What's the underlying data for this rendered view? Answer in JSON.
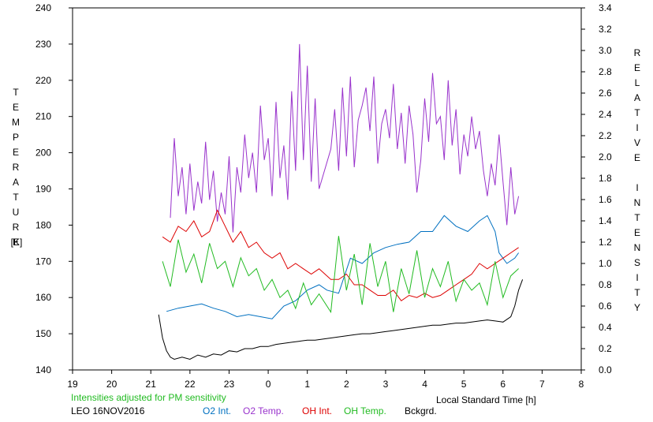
{
  "left_axis_label": "TEMPERATURE",
  "left_axis_unit": "[K]",
  "right_axis_label": "RELATIVE INTENSITY",
  "note": "Intensities adjusted for PM sensitivity",
  "station": "LEO 16NOV2016",
  "colors": {
    "o2_int": "#0070c0",
    "o2_temp": "#9933cc",
    "oh_int": "#dd0000",
    "oh_temp": "#22bb22",
    "bckgrd": "#000000",
    "note": "#22bb22"
  },
  "chart_data": {
    "type": "line",
    "xlabel": "Local Standard Time [h]",
    "x_ticks": [
      "19",
      "20",
      "21",
      "22",
      "23",
      "0",
      "1",
      "2",
      "3",
      "4",
      "5",
      "6",
      "7",
      "8"
    ],
    "xlim": [
      19,
      32
    ],
    "ylabel_left": "TEMPERATURE [K]",
    "ylim_left": [
      140,
      240
    ],
    "y_ticks_left": [
      "140",
      "150",
      "160",
      "170",
      "180",
      "190",
      "200",
      "210",
      "220",
      "230",
      "240"
    ],
    "ylabel_right": "RELATIVE INTENSITY",
    "ylim_right": [
      0.0,
      3.4
    ],
    "y_ticks_right": [
      "0.0",
      "0.2",
      "0.4",
      "0.6",
      "0.8",
      "1.0",
      "1.2",
      "1.4",
      "1.6",
      "1.8",
      "2.0",
      "2.2",
      "2.4",
      "2.6",
      "2.8",
      "3.0",
      "3.2",
      "3.4"
    ],
    "grid": false,
    "legend": "bottom",
    "series": [
      {
        "name": "O2 Int.",
        "axis": "right",
        "x": [
          21.4,
          21.7,
          22.0,
          22.3,
          22.6,
          22.9,
          23.2,
          23.5,
          23.8,
          24.1,
          24.4,
          24.7,
          25.0,
          25.3,
          25.5,
          25.8,
          26.1,
          26.4,
          26.7,
          27.0,
          27.3,
          27.6,
          27.9,
          28.2,
          28.5,
          28.8,
          29.1,
          29.4,
          29.6,
          29.8,
          29.9,
          30.1,
          30.3,
          30.4
        ],
        "y": [
          0.55,
          0.58,
          0.6,
          0.62,
          0.58,
          0.55,
          0.5,
          0.52,
          0.5,
          0.48,
          0.6,
          0.65,
          0.75,
          0.8,
          0.75,
          0.72,
          1.05,
          1.0,
          1.1,
          1.15,
          1.18,
          1.2,
          1.3,
          1.3,
          1.45,
          1.35,
          1.3,
          1.4,
          1.45,
          1.3,
          1.1,
          1.0,
          1.05,
          1.1
        ]
      },
      {
        "name": "O2 Temp.",
        "axis": "left",
        "x": [
          21.5,
          21.6,
          21.7,
          21.8,
          21.9,
          22.0,
          22.1,
          22.2,
          22.3,
          22.4,
          22.5,
          22.6,
          22.7,
          22.8,
          22.9,
          23.0,
          23.1,
          23.2,
          23.3,
          23.4,
          23.5,
          23.6,
          23.7,
          23.8,
          23.9,
          24.0,
          24.1,
          24.2,
          24.3,
          24.4,
          24.5,
          24.6,
          24.7,
          24.8,
          24.9,
          25.0,
          25.1,
          25.2,
          25.3,
          25.6,
          25.7,
          25.8,
          25.9,
          26.0,
          26.1,
          26.2,
          26.3,
          26.4,
          26.5,
          26.6,
          26.7,
          26.8,
          26.9,
          27.0,
          27.1,
          27.2,
          27.3,
          27.4,
          27.5,
          27.6,
          27.7,
          27.8,
          27.9,
          28.0,
          28.1,
          28.2,
          28.3,
          28.4,
          28.5,
          28.6,
          28.7,
          28.8,
          28.9,
          29.0,
          29.1,
          29.2,
          29.3,
          29.4,
          29.5,
          29.6,
          29.7,
          29.8,
          29.9,
          30.0,
          30.1,
          30.2,
          30.3,
          30.4
        ],
        "y": [
          182,
          204,
          188,
          196,
          183,
          197,
          184,
          192,
          186,
          203,
          187,
          195,
          181,
          189,
          183,
          199,
          178,
          196,
          189,
          205,
          193,
          200,
          189,
          213,
          198,
          204,
          188,
          214,
          193,
          202,
          187,
          217,
          195,
          230,
          198,
          224,
          192,
          215,
          190,
          201,
          212,
          195,
          218,
          199,
          221,
          196,
          209,
          213,
          218,
          206,
          221,
          197,
          208,
          212,
          204,
          219,
          201,
          211,
          197,
          213,
          205,
          189,
          198,
          215,
          203,
          222,
          208,
          210,
          198,
          220,
          202,
          212,
          194,
          205,
          199,
          210,
          201,
          206,
          195,
          188,
          197,
          191,
          205,
          192,
          180,
          196,
          183,
          188
        ]
      },
      {
        "name": "OH Int.",
        "axis": "right",
        "x": [
          21.3,
          21.5,
          21.7,
          21.9,
          22.1,
          22.3,
          22.5,
          22.7,
          22.9,
          23.1,
          23.3,
          23.5,
          23.7,
          23.9,
          24.1,
          24.3,
          24.5,
          24.7,
          24.9,
          25.1,
          25.3,
          25.6,
          25.8,
          26.0,
          26.2,
          26.4,
          26.6,
          26.8,
          27.0,
          27.2,
          27.4,
          27.6,
          27.8,
          28.0,
          28.2,
          28.4,
          28.6,
          28.8,
          29.0,
          29.2,
          29.4,
          29.6,
          29.8,
          30.0,
          30.2,
          30.4
        ],
        "y": [
          1.25,
          1.2,
          1.35,
          1.3,
          1.4,
          1.25,
          1.3,
          1.5,
          1.35,
          1.2,
          1.3,
          1.15,
          1.2,
          1.1,
          1.05,
          1.1,
          0.95,
          1.0,
          0.95,
          0.9,
          0.95,
          0.85,
          0.85,
          0.9,
          0.8,
          0.8,
          0.75,
          0.7,
          0.7,
          0.75,
          0.65,
          0.7,
          0.68,
          0.72,
          0.68,
          0.7,
          0.75,
          0.8,
          0.85,
          0.9,
          1.0,
          0.95,
          1.0,
          1.05,
          1.1,
          1.15
        ]
      },
      {
        "name": "OH Temp.",
        "axis": "left",
        "x": [
          21.3,
          21.5,
          21.7,
          21.9,
          22.1,
          22.3,
          22.5,
          22.7,
          22.9,
          23.1,
          23.3,
          23.5,
          23.7,
          23.9,
          24.1,
          24.3,
          24.5,
          24.7,
          24.9,
          25.1,
          25.3,
          25.6,
          25.8,
          26.0,
          26.2,
          26.4,
          26.6,
          26.8,
          27.0,
          27.2,
          27.4,
          27.6,
          27.8,
          28.0,
          28.2,
          28.4,
          28.6,
          28.8,
          29.0,
          29.2,
          29.4,
          29.6,
          29.8,
          30.0,
          30.2,
          30.4
        ],
        "y": [
          170,
          163,
          176,
          167,
          172,
          164,
          175,
          168,
          170,
          163,
          171,
          166,
          168,
          162,
          165,
          160,
          162,
          157,
          164,
          158,
          161,
          156,
          177,
          162,
          172,
          158,
          175,
          163,
          170,
          156,
          168,
          161,
          173,
          160,
          168,
          163,
          170,
          159,
          165,
          162,
          164,
          158,
          170,
          160,
          166,
          168
        ]
      },
      {
        "name": "Bckgrd.",
        "axis": "right",
        "x": [
          21.2,
          21.3,
          21.4,
          21.5,
          21.6,
          21.8,
          22.0,
          22.2,
          22.4,
          22.6,
          22.8,
          23.0,
          23.2,
          23.4,
          23.6,
          23.8,
          24.0,
          24.2,
          24.4,
          24.6,
          24.8,
          25.0,
          25.2,
          25.4,
          25.6,
          25.8,
          26.0,
          26.2,
          26.4,
          26.6,
          26.8,
          27.0,
          27.2,
          27.4,
          27.6,
          27.8,
          28.0,
          28.2,
          28.4,
          28.6,
          28.8,
          29.0,
          29.2,
          29.4,
          29.6,
          29.8,
          30.0,
          30.2,
          30.3,
          30.4,
          30.5
        ],
        "y": [
          0.52,
          0.3,
          0.18,
          0.12,
          0.1,
          0.12,
          0.1,
          0.14,
          0.12,
          0.15,
          0.14,
          0.18,
          0.17,
          0.2,
          0.2,
          0.22,
          0.22,
          0.24,
          0.25,
          0.26,
          0.27,
          0.28,
          0.28,
          0.29,
          0.3,
          0.31,
          0.32,
          0.33,
          0.34,
          0.34,
          0.35,
          0.36,
          0.37,
          0.38,
          0.39,
          0.4,
          0.41,
          0.42,
          0.42,
          0.43,
          0.44,
          0.44,
          0.45,
          0.46,
          0.47,
          0.46,
          0.45,
          0.5,
          0.6,
          0.75,
          0.85
        ]
      }
    ]
  }
}
